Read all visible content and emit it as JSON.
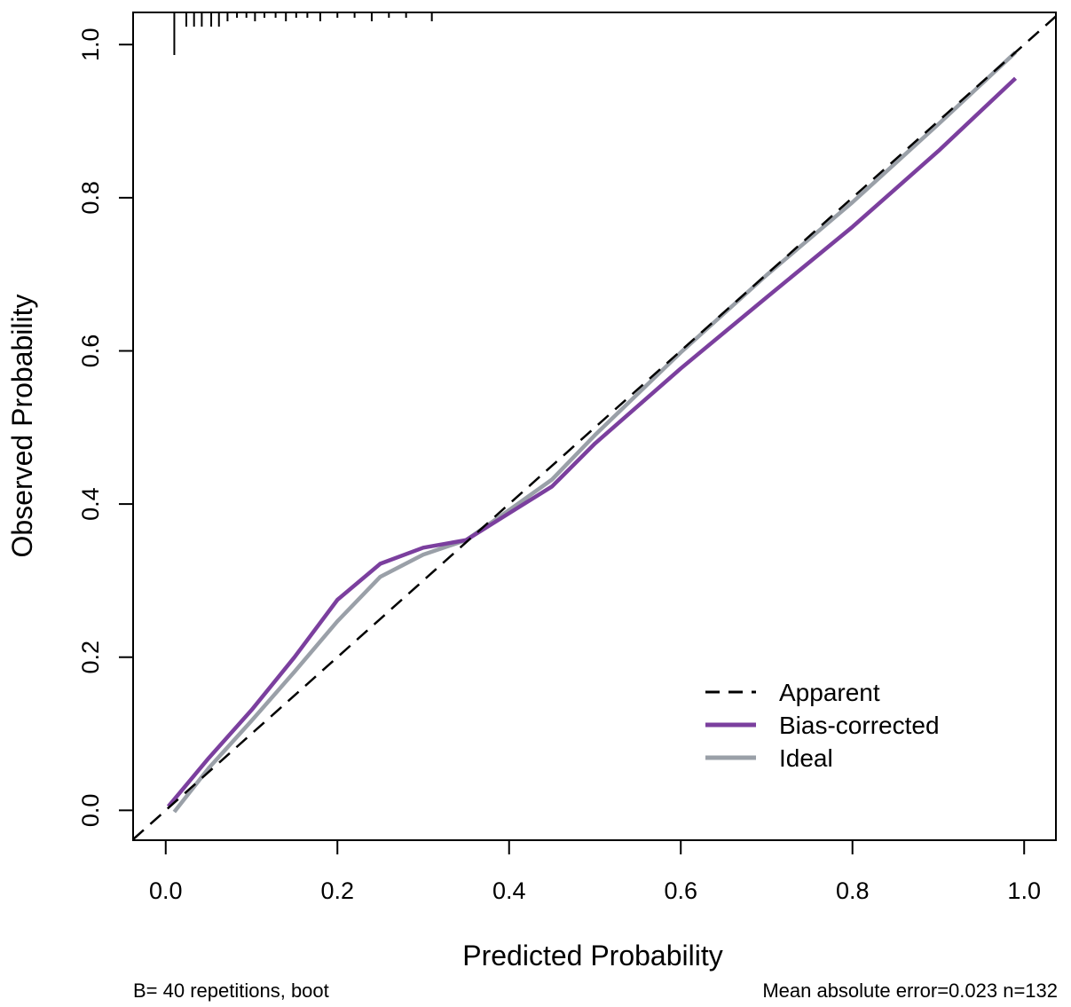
{
  "chart_data": {
    "type": "line",
    "xlabel": "Predicted Probability",
    "ylabel": "Observed Probability",
    "xlim": [
      -0.038,
      1.037
    ],
    "ylim": [
      -0.039,
      1.042
    ],
    "xticks": [
      "0.0",
      "0.2",
      "0.4",
      "0.6",
      "0.8",
      "1.0"
    ],
    "yticks": [
      "0.0",
      "0.2",
      "0.4",
      "0.6",
      "0.8",
      "1.0"
    ],
    "grid": false,
    "legend_position": "bottom-right",
    "series": [
      {
        "name": "Apparent",
        "color": "#000000",
        "style": "dashed",
        "x": [
          -0.038,
          1.037
        ],
        "y": [
          -0.038,
          1.037
        ]
      },
      {
        "name": "Bias-corrected",
        "color": "#7b3f9e",
        "style": "solid",
        "x": [
          0.003,
          0.05,
          0.1,
          0.15,
          0.2,
          0.25,
          0.3,
          0.35,
          0.4,
          0.45,
          0.5,
          0.6,
          0.7,
          0.8,
          0.9,
          0.99
        ],
        "y": [
          0.005,
          0.068,
          0.131,
          0.2,
          0.275,
          0.322,
          0.343,
          0.353,
          0.388,
          0.423,
          0.479,
          0.577,
          0.67,
          0.762,
          0.861,
          0.956
        ]
      },
      {
        "name": "Ideal",
        "color": "#9aa0a8",
        "style": "solid",
        "x": [
          0.01,
          0.05,
          0.1,
          0.15,
          0.2,
          0.25,
          0.3,
          0.35,
          0.4,
          0.45,
          0.5,
          0.6,
          0.7,
          0.8,
          0.9,
          0.99
        ],
        "y": [
          -0.002,
          0.055,
          0.117,
          0.181,
          0.247,
          0.305,
          0.334,
          0.353,
          0.392,
          0.432,
          0.49,
          0.598,
          0.699,
          0.794,
          0.896,
          0.99
        ]
      }
    ],
    "rug_x": [
      0.01,
      0.024,
      0.033,
      0.042,
      0.053,
      0.062,
      0.072,
      0.083,
      0.094,
      0.104,
      0.115,
      0.128,
      0.14,
      0.152,
      0.165,
      0.18,
      0.2,
      0.22,
      0.24,
      0.26,
      0.28,
      0.31
    ],
    "footer_left": "B= 40 repetitions, boot",
    "footer_right": "Mean absolute error=0.023 n=132"
  }
}
